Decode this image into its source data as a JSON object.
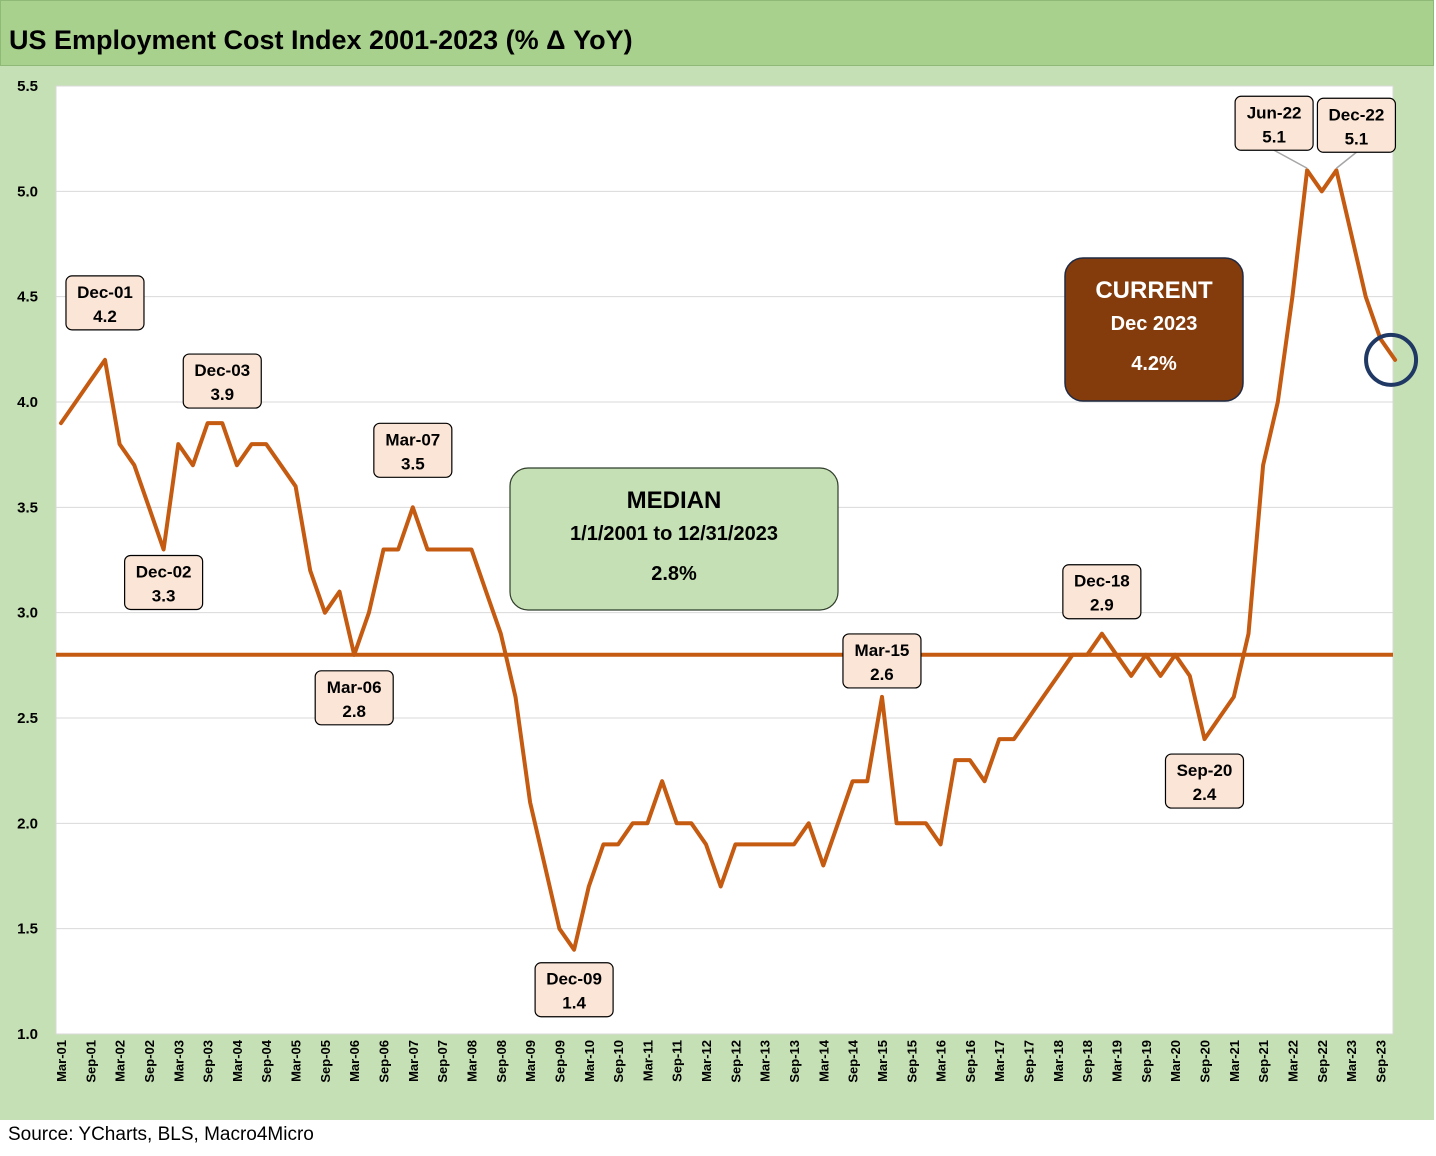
{
  "title": "US Employment Cost Index 2001-2023 (% Δ YoY)",
  "source": "Source: YCharts, BLS, Macro4Micro",
  "colors": {
    "line": "#c55a11",
    "median_line": "#c55a11",
    "title_bg": "#a9d18e",
    "panel_bg": "#c5e0b4",
    "label_bg": "#fbe5d6",
    "current_box_bg": "#843c0c",
    "median_box_bg": "#c5e0b4",
    "marker_ring": "#1f3864"
  },
  "chart_data": {
    "type": "line",
    "ylim": [
      1.0,
      5.5
    ],
    "yticks": [
      "1.0",
      "1.5",
      "2.0",
      "2.5",
      "3.0",
      "3.5",
      "4.0",
      "4.5",
      "5.0",
      "5.5"
    ],
    "grid": true,
    "x_tick_labels": [
      "Mar-01",
      "Sep-01",
      "Mar-02",
      "Sep-02",
      "Mar-03",
      "Sep-03",
      "Mar-04",
      "Sep-04",
      "Mar-05",
      "Sep-05",
      "Mar-06",
      "Sep-06",
      "Mar-07",
      "Sep-07",
      "Mar-08",
      "Sep-08",
      "Mar-09",
      "Sep-09",
      "Mar-10",
      "Sep-10",
      "Mar-11",
      "Sep-11",
      "Mar-12",
      "Sep-12",
      "Mar-13",
      "Sep-13",
      "Mar-14",
      "Sep-14",
      "Mar-15",
      "Sep-15",
      "Mar-16",
      "Sep-16",
      "Mar-17",
      "Sep-17",
      "Mar-18",
      "Sep-18",
      "Mar-19",
      "Sep-19",
      "Mar-20",
      "Sep-20",
      "Mar-21",
      "Sep-21",
      "Mar-22",
      "Sep-22",
      "Mar-23",
      "Sep-23"
    ],
    "quarters": [
      "Mar-01",
      "Jun-01",
      "Sep-01",
      "Dec-01",
      "Mar-02",
      "Jun-02",
      "Sep-02",
      "Dec-02",
      "Mar-03",
      "Jun-03",
      "Sep-03",
      "Dec-03",
      "Mar-04",
      "Jun-04",
      "Sep-04",
      "Dec-04",
      "Mar-05",
      "Jun-05",
      "Sep-05",
      "Dec-05",
      "Mar-06",
      "Jun-06",
      "Sep-06",
      "Dec-06",
      "Mar-07",
      "Jun-07",
      "Sep-07",
      "Dec-07",
      "Mar-08",
      "Jun-08",
      "Sep-08",
      "Dec-08",
      "Mar-09",
      "Jun-09",
      "Sep-09",
      "Dec-09",
      "Mar-10",
      "Jun-10",
      "Sep-10",
      "Dec-10",
      "Mar-11",
      "Jun-11",
      "Sep-11",
      "Dec-11",
      "Mar-12",
      "Jun-12",
      "Sep-12",
      "Dec-12",
      "Mar-13",
      "Jun-13",
      "Sep-13",
      "Dec-13",
      "Mar-14",
      "Jun-14",
      "Sep-14",
      "Dec-14",
      "Mar-15",
      "Jun-15",
      "Sep-15",
      "Dec-15",
      "Mar-16",
      "Jun-16",
      "Sep-16",
      "Dec-16",
      "Mar-17",
      "Jun-17",
      "Sep-17",
      "Dec-17",
      "Mar-18",
      "Jun-18",
      "Sep-18",
      "Dec-18",
      "Mar-19",
      "Jun-19",
      "Sep-19",
      "Dec-19",
      "Mar-20",
      "Jun-20",
      "Sep-20",
      "Dec-20",
      "Mar-21",
      "Jun-21",
      "Sep-21",
      "Dec-21",
      "Mar-22",
      "Jun-22",
      "Sep-22",
      "Dec-22",
      "Mar-23",
      "Jun-23",
      "Sep-23",
      "Dec-23"
    ],
    "values": [
      3.9,
      4.0,
      4.1,
      4.2,
      3.8,
      3.7,
      3.5,
      3.3,
      3.8,
      3.7,
      3.9,
      3.9,
      3.7,
      3.8,
      3.8,
      3.7,
      3.6,
      3.2,
      3.0,
      3.1,
      2.8,
      3.0,
      3.3,
      3.3,
      3.5,
      3.3,
      3.3,
      3.3,
      3.3,
      3.1,
      2.9,
      2.6,
      2.1,
      1.8,
      1.5,
      1.4,
      1.7,
      1.9,
      1.9,
      2.0,
      2.0,
      2.2,
      2.0,
      2.0,
      1.9,
      1.7,
      1.9,
      1.9,
      1.9,
      1.9,
      1.9,
      2.0,
      1.8,
      2.0,
      2.2,
      2.2,
      2.6,
      2.0,
      2.0,
      2.0,
      1.9,
      2.3,
      2.3,
      2.2,
      2.4,
      2.4,
      2.5,
      2.6,
      2.7,
      2.8,
      2.8,
      2.9,
      2.8,
      2.7,
      2.8,
      2.7,
      2.8,
      2.7,
      2.4,
      2.5,
      2.6,
      2.9,
      3.7,
      4.0,
      4.5,
      5.1,
      5.0,
      5.1,
      4.8,
      4.5,
      4.3,
      4.2
    ],
    "median_value": 2.8,
    "callouts": [
      {
        "date": "Dec-01",
        "value": "4.2"
      },
      {
        "date": "Dec-02",
        "value": "3.3"
      },
      {
        "date": "Dec-03",
        "value": "3.9"
      },
      {
        "date": "Mar-06",
        "value": "2.8"
      },
      {
        "date": "Mar-07",
        "value": "3.5"
      },
      {
        "date": "Dec-09",
        "value": "1.4"
      },
      {
        "date": "Mar-15",
        "value": "2.6"
      },
      {
        "date": "Dec-18",
        "value": "2.9"
      },
      {
        "date": "Sep-20",
        "value": "2.4"
      },
      {
        "date": "Jun-22",
        "value": "5.1"
      },
      {
        "date": "Dec-22",
        "value": "5.1"
      }
    ],
    "median_box": {
      "heading": "MEDIAN",
      "range": "1/1/2001 to 12/31/2023",
      "value": "2.8%"
    },
    "current_box": {
      "heading": "CURRENT",
      "date": "Dec 2023",
      "value": "4.2%"
    }
  }
}
